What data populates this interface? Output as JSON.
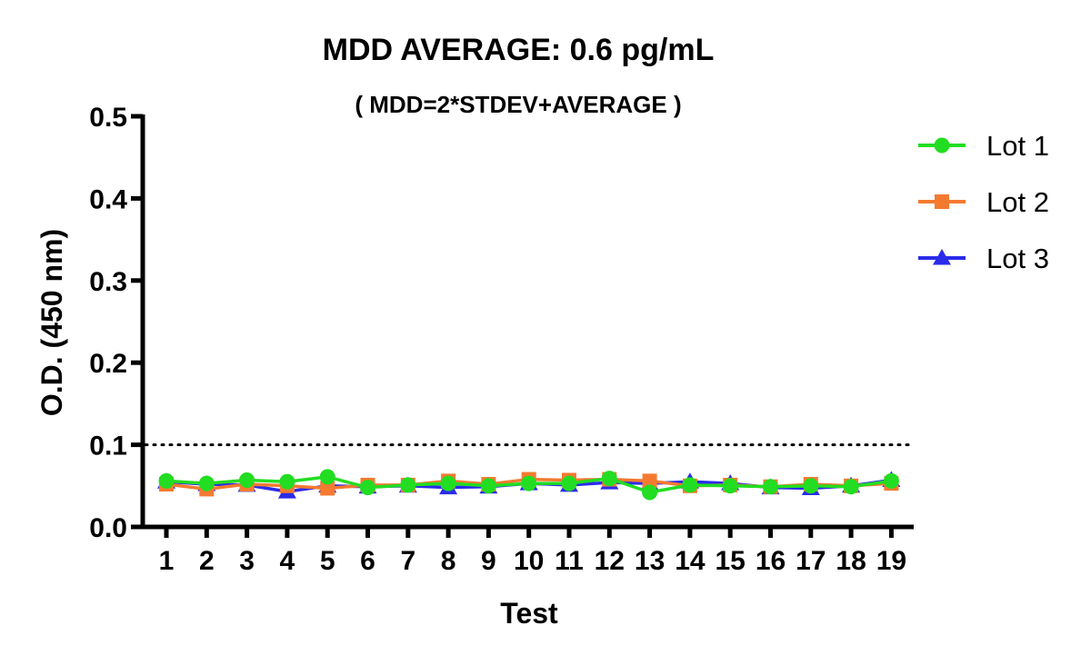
{
  "chart_data": {
    "type": "line",
    "title": "MDD AVERAGE:  0.6 pg/mL",
    "subtitle": "( MDD=2*STDEV+AVERAGE )",
    "xlabel": "Test",
    "ylabel": "O.D. (450 nm)",
    "x": [
      1,
      2,
      3,
      4,
      5,
      6,
      7,
      8,
      9,
      10,
      11,
      12,
      13,
      14,
      15,
      16,
      17,
      18,
      19
    ],
    "x_tick_labels": [
      "1",
      "2",
      "3",
      "4",
      "5",
      "6",
      "7",
      "8",
      "9",
      "10",
      "11",
      "12",
      "13",
      "14",
      "15",
      "16",
      "17",
      "18",
      "19"
    ],
    "ylim": [
      0,
      0.5
    ],
    "y_ticks": [
      0.0,
      0.1,
      0.2,
      0.3,
      0.4,
      0.5
    ],
    "y_tick_labels": [
      "0.0",
      "0.1",
      "0.2",
      "0.3",
      "0.4",
      "0.5"
    ],
    "reference_line": {
      "y": 0.1,
      "style": "dotted"
    },
    "grid": false,
    "legend_position": "right",
    "series": [
      {
        "name": "Lot 1",
        "color": "#22dd22",
        "marker": "circle",
        "values": [
          0.056,
          0.053,
          0.057,
          0.055,
          0.061,
          0.048,
          0.051,
          0.053,
          0.05,
          0.053,
          0.053,
          0.059,
          0.042,
          0.051,
          0.05,
          0.049,
          0.05,
          0.049,
          0.056
        ]
      },
      {
        "name": "Lot 2",
        "color": "#f47a30",
        "marker": "square",
        "values": [
          0.052,
          0.046,
          0.052,
          0.05,
          0.047,
          0.051,
          0.051,
          0.056,
          0.052,
          0.058,
          0.057,
          0.058,
          0.056,
          0.05,
          0.051,
          0.049,
          0.052,
          0.05,
          0.053
        ]
      },
      {
        "name": "Lot 3",
        "color": "#2b2bea",
        "marker": "triangle",
        "values": [
          0.055,
          0.052,
          0.051,
          0.043,
          0.05,
          0.049,
          0.05,
          0.048,
          0.049,
          0.053,
          0.051,
          0.054,
          0.053,
          0.055,
          0.053,
          0.048,
          0.047,
          0.05,
          0.057
        ]
      }
    ]
  }
}
